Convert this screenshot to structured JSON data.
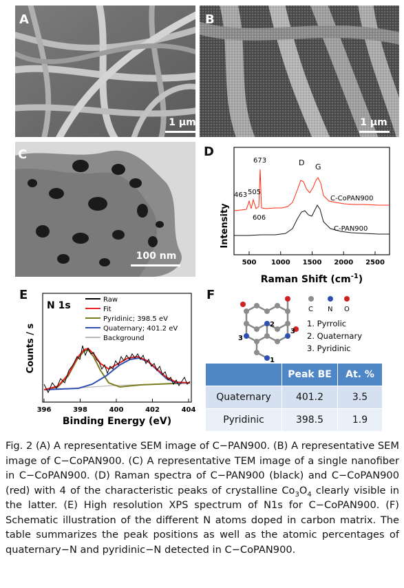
{
  "panels": {
    "a": {
      "label": "A",
      "scale": "1 μm"
    },
    "b": {
      "label": "B",
      "scale": "1 μm"
    },
    "c": {
      "label": "C",
      "scale": "100 nm"
    },
    "d": {
      "label": "D"
    },
    "e": {
      "label": "E"
    },
    "f": {
      "label": "F"
    }
  },
  "raman": {
    "ylabel": "Intensity",
    "xlabel": "Raman Shift (cm",
    "xlabel_sup": "-1",
    "xlabel_end": ")",
    "xticks": [
      "500",
      "1000",
      "1500",
      "2000",
      "2500"
    ],
    "series_labels": [
      "C-CoPAN900",
      "C-PAN900"
    ],
    "peak_labels": [
      "463",
      "505",
      "673",
      "606",
      "D",
      "G"
    ],
    "colors": {
      "C-CoPAN900": "#ff2a10",
      "C-PAN900": "#111111"
    }
  },
  "xps": {
    "title": "N 1s",
    "ylabel": "Counts / s",
    "xlabel": "Binding Energy (eV)",
    "xticks": [
      "396",
      "398",
      "400",
      "402",
      "404"
    ],
    "legend": [
      "Raw",
      "Fit",
      "Pyridinic; 398.5 eV",
      "Quaternary; 401.2 eV",
      "Background"
    ],
    "colors": {
      "Raw": "#000000",
      "Fit": "#ee2222",
      "Pyridinic": "#7b7a1c",
      "Quaternary": "#2f4fb0",
      "Background": "#b9b9b9"
    }
  },
  "schematic": {
    "atoms_legend": [
      "C",
      "N",
      "O"
    ],
    "types": [
      "1.  Pyrrolic",
      "2.  Quaternary",
      "3.  Pyridinic"
    ],
    "site_labels": [
      "1",
      "2",
      "3",
      "3"
    ]
  },
  "table": {
    "headers": [
      "",
      "Peak BE",
      "At. %"
    ],
    "rows": [
      [
        "Quaternary",
        "401.2",
        "3.5"
      ],
      [
        "Pyridinic",
        "398.5",
        "1.9"
      ]
    ]
  },
  "caption": {
    "p1": "Fig. 2   (A) A representative SEM image of C−PAN900. (B) A representative SEM image of C−CoPAN900. (C) A representative TEM image of a single nanofiber in C−CoPAN900. (D) Raman spectra of C−PAN900 (black) and C−CoPAN900 (red) with 4 of the characteristic peaks of crystalline Co",
    "sub1": "3",
    "p2": "O",
    "sub2": "4",
    "p3": " clearly visible in the latter. (E) High resolution XPS spectrum of N1s for C−CoPAN900. (F) Schematic illustration of the different N atoms doped in carbon matrix. The table summarizes the peak positions as well as the atomic percentages of quaternary−N and pyridinic−N detected in C−CoPAN900."
  }
}
